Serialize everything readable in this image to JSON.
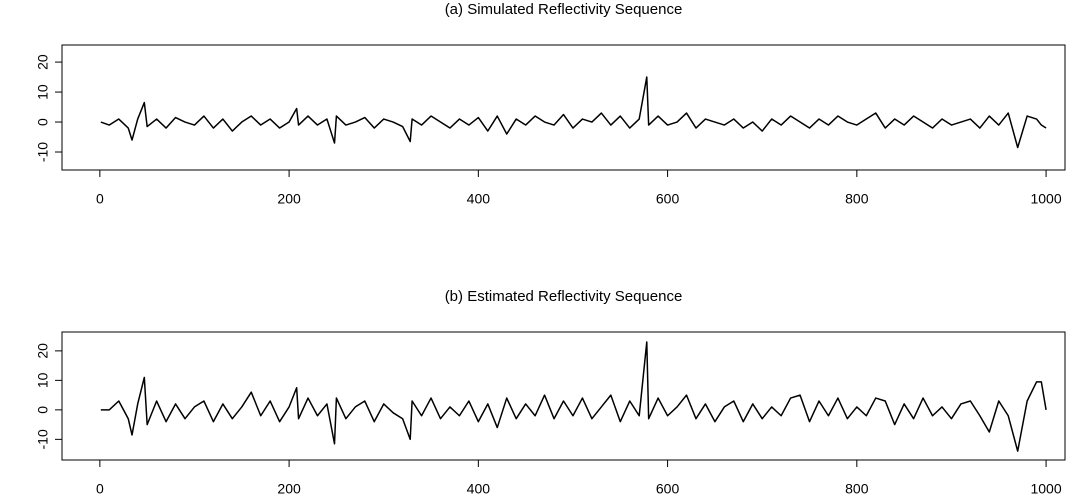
{
  "chart_data": [
    {
      "type": "line",
      "title": "(a) Simulated Reflectivity Sequence",
      "x": [
        1,
        10,
        20,
        30,
        34,
        40,
        47,
        50,
        60,
        70,
        80,
        90,
        100,
        110,
        120,
        130,
        140,
        150,
        160,
        170,
        180,
        190,
        200,
        208,
        210,
        220,
        230,
        240,
        248,
        250,
        260,
        270,
        280,
        290,
        300,
        310,
        320,
        328,
        330,
        340,
        350,
        360,
        370,
        380,
        390,
        400,
        410,
        420,
        430,
        440,
        450,
        460,
        470,
        480,
        490,
        500,
        510,
        520,
        530,
        540,
        550,
        560,
        570,
        578,
        580,
        590,
        600,
        610,
        620,
        630,
        640,
        650,
        660,
        670,
        680,
        690,
        700,
        710,
        720,
        730,
        740,
        750,
        760,
        770,
        780,
        790,
        800,
        810,
        820,
        830,
        840,
        850,
        860,
        870,
        880,
        890,
        900,
        910,
        920,
        930,
        940,
        950,
        960,
        970,
        980,
        990,
        995,
        1000
      ],
      "values": [
        0,
        -1,
        1,
        -2,
        -6,
        1,
        6.5,
        -1.5,
        1,
        -2,
        1.5,
        0,
        -1,
        2,
        -2,
        1,
        -3,
        0,
        2,
        -1,
        1,
        -2,
        0,
        4.5,
        -1,
        2,
        -1,
        1,
        -7,
        2,
        -1,
        0,
        1.5,
        -2,
        1,
        0,
        -1.5,
        -6.5,
        1,
        -1,
        2,
        0,
        -2,
        1,
        -1,
        1.5,
        -3,
        2,
        -4,
        1,
        -1,
        2,
        0,
        -1,
        2.5,
        -2,
        1,
        0,
        3,
        -1,
        2,
        -2,
        1,
        15,
        -1,
        2,
        -1,
        0,
        3,
        -2,
        1,
        0,
        -1,
        1,
        -2,
        0,
        -3,
        1,
        -1,
        2,
        0,
        -2,
        1,
        -1,
        2,
        0,
        -1,
        1,
        3,
        -2,
        1,
        -1,
        2,
        0,
        -2,
        1,
        -1,
        0,
        1,
        -2,
        2,
        -1,
        3,
        -8.5,
        2,
        1,
        -1,
        -2
      ],
      "color": "#000000",
      "xlim": [
        -40,
        1020
      ],
      "xticks": [
        0,
        200,
        400,
        600,
        800,
        1000
      ],
      "ylim": [
        -16,
        25.7
      ],
      "yticks": [
        -10,
        0,
        10,
        20
      ]
    },
    {
      "type": "line",
      "title": "(b) Estimated Reflectivity Sequence",
      "x": [
        1,
        10,
        20,
        30,
        34,
        40,
        47,
        50,
        60,
        70,
        80,
        90,
        100,
        110,
        120,
        130,
        140,
        150,
        160,
        170,
        180,
        190,
        200,
        208,
        210,
        220,
        230,
        240,
        248,
        250,
        260,
        270,
        280,
        290,
        300,
        310,
        320,
        328,
        330,
        340,
        350,
        360,
        370,
        380,
        390,
        400,
        410,
        420,
        430,
        440,
        450,
        460,
        470,
        480,
        490,
        500,
        510,
        520,
        530,
        540,
        550,
        560,
        570,
        578,
        580,
        590,
        600,
        610,
        620,
        630,
        640,
        650,
        660,
        670,
        680,
        690,
        700,
        710,
        720,
        730,
        740,
        750,
        760,
        770,
        780,
        790,
        800,
        810,
        820,
        830,
        840,
        850,
        860,
        870,
        880,
        890,
        900,
        910,
        920,
        930,
        940,
        950,
        960,
        970,
        980,
        990,
        995,
        1000
      ],
      "values": [
        0,
        0,
        3,
        -3,
        -8.5,
        2,
        11,
        -5,
        3,
        -4,
        2,
        -3,
        1,
        3,
        -4,
        2,
        -3,
        1,
        6,
        -2,
        3,
        -4,
        1,
        7.5,
        -3,
        4,
        -2,
        2,
        -11.5,
        4,
        -3,
        1,
        3,
        -4,
        2,
        -1,
        -3,
        -10,
        3,
        -2,
        4,
        -3,
        1,
        -2,
        3,
        -4,
        2,
        -6,
        4,
        -3,
        2,
        -2,
        5,
        -3,
        3,
        -2,
        4,
        -3,
        1,
        5,
        -4,
        3,
        -2,
        23,
        -3,
        4,
        -2,
        1,
        5,
        -3,
        2,
        -4,
        1,
        3,
        -4,
        2,
        -3,
        1,
        -2,
        4,
        5,
        -4,
        3,
        -2,
        4,
        -3,
        1,
        -2,
        4,
        3,
        -5,
        2,
        -3,
        4,
        -2,
        1,
        -3,
        2,
        3,
        -2,
        -7.5,
        3,
        -2,
        -14,
        3,
        9.5,
        9.5,
        0
      ],
      "color": "#000000",
      "xlim": [
        -40,
        1020
      ],
      "xticks": [
        0,
        200,
        400,
        600,
        800,
        1000
      ],
      "ylim": [
        -17,
        26.4
      ],
      "yticks": [
        -10,
        0,
        10,
        20
      ]
    }
  ]
}
